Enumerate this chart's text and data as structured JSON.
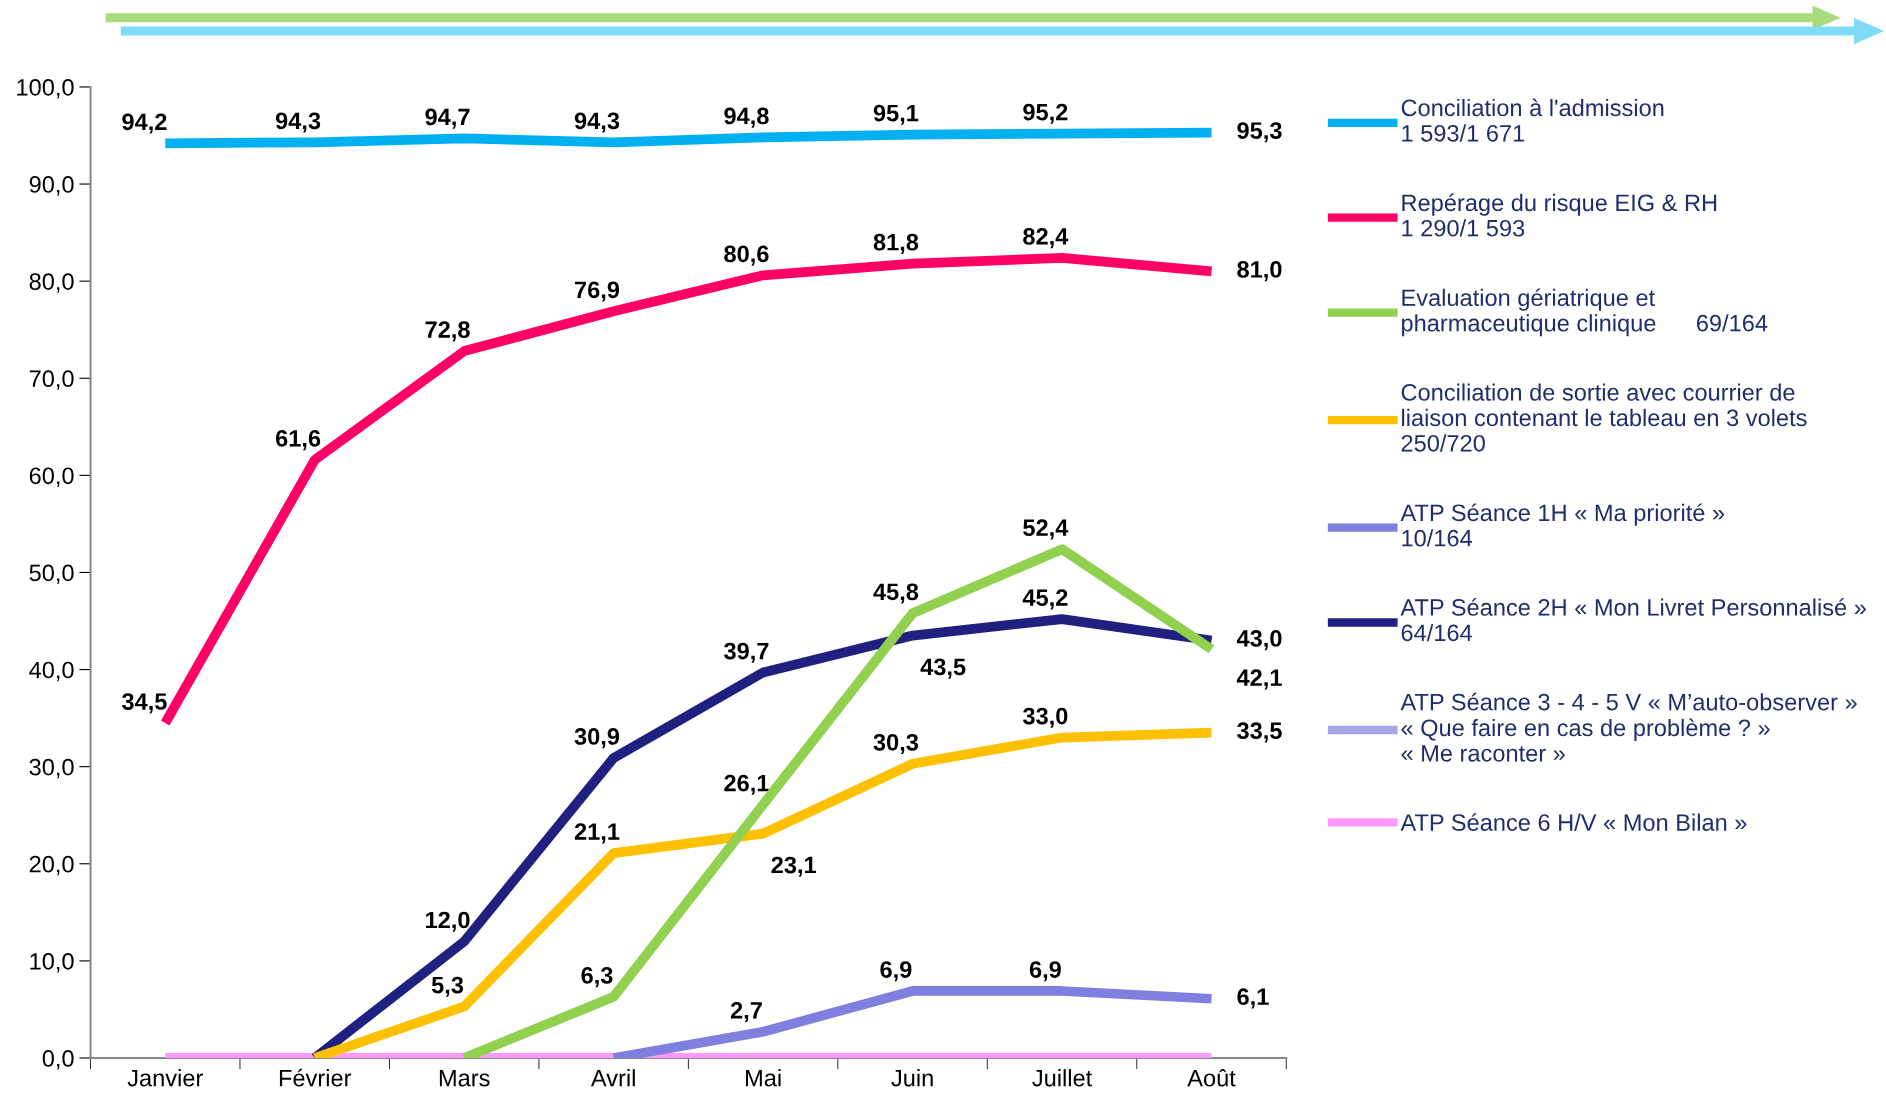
{
  "chart_data": {
    "type": "line",
    "categories": [
      "Janvier",
      "Février",
      "Mars",
      "Avril",
      "Mai",
      "Juin",
      "Juillet",
      "Août"
    ],
    "ylim": [
      0,
      100
    ],
    "yticks": [
      {
        "value": 0,
        "label": "0,0"
      },
      {
        "value": 10,
        "label": "10,0"
      },
      {
        "value": 20,
        "label": "20,0"
      },
      {
        "value": 30,
        "label": "30,0"
      },
      {
        "value": 40,
        "label": "40,0"
      },
      {
        "value": 50,
        "label": "50,0"
      },
      {
        "value": 60,
        "label": "60,0"
      },
      {
        "value": 70,
        "label": "70,0"
      },
      {
        "value": 80,
        "label": "80,0"
      },
      {
        "value": 90,
        "label": "90,0"
      },
      {
        "value": 100,
        "label": "100,0"
      }
    ],
    "grid": false,
    "legend": "right",
    "marker": "none",
    "line_style": "solid",
    "series": [
      {
        "name": "Conciliation à l'admission\n1 593/1 671",
        "color": "#00b0f0",
        "values": [
          94.2,
          94.3,
          94.7,
          94.3,
          94.8,
          95.1,
          95.2,
          95.3
        ],
        "value_labels": [
          "94,2",
          "94,3",
          "94,7",
          "94,3",
          "94,8",
          "95,1",
          "95,2",
          "95,3"
        ]
      },
      {
        "name": "Repérage du risque EIG & RH\n1 290/1 593",
        "color": "#ff0066",
        "values": [
          34.5,
          61.6,
          72.8,
          76.9,
          80.6,
          81.8,
          82.4,
          81.0
        ],
        "value_labels": [
          "34,5",
          "61,6",
          "72,8",
          "76,9",
          "80,6",
          "81,8",
          "82,4",
          "81,0"
        ]
      },
      {
        "name": "Evaluation gériatrique et\npharmaceutique clinique      69/164",
        "color": "#92d050",
        "values": [
          null,
          null,
          0,
          6.3,
          26.1,
          45.8,
          52.4,
          42.1
        ],
        "value_labels": [
          null,
          null,
          null,
          "6,3",
          "26,1",
          "45,8",
          "52,4",
          "42,1"
        ]
      },
      {
        "name": "Conciliation de sortie avec courrier de\nliaison contenant le tableau en 3 volets\n250/720",
        "color": "#ffc000",
        "values": [
          null,
          0,
          5.3,
          21.1,
          23.1,
          30.3,
          33.0,
          33.5
        ],
        "value_labels": [
          null,
          null,
          "5,3",
          "21,1",
          "23,1",
          "30,3",
          "33,0",
          "33,5"
        ]
      },
      {
        "name": "ATP Séance 1H « Ma priorité »\n10/164",
        "color": "#7f7fe0",
        "values": [
          null,
          null,
          null,
          0,
          2.7,
          6.9,
          6.9,
          6.1
        ],
        "value_labels": [
          null,
          null,
          null,
          null,
          "2,7",
          "6,9",
          "6,9",
          "6,1"
        ]
      },
      {
        "name": "ATP Séance 2H « Mon Livret Personnalisé »\n64/164",
        "color": "#202080",
        "values": [
          null,
          0,
          12.0,
          30.9,
          39.7,
          43.5,
          45.2,
          43.0
        ],
        "value_labels": [
          null,
          null,
          "12,0",
          "30,9",
          "39,7",
          "43,5",
          "45,2",
          "43,0"
        ]
      },
      {
        "name": "ATP Séance 3 - 4 - 5 V « M’auto-observer »\n« Que faire en cas de problème ? »\n« Me raconter »",
        "color": "#a6a6e8",
        "values": [
          null,
          null,
          null,
          null,
          null,
          null,
          null,
          null
        ]
      },
      {
        "name": "ATP Séance 6 H/V « Mon Bilan »",
        "color": "#ff99ff",
        "values": [
          0,
          0,
          0,
          0,
          0,
          0,
          0,
          0
        ]
      }
    ]
  }
}
